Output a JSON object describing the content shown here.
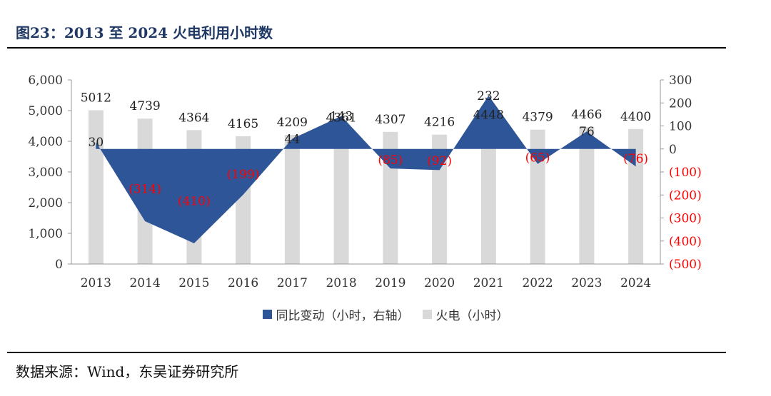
{
  "figure": {
    "title": "图23：2013 至 2024 火电利用小时数",
    "source": "数据来源：Wind，东吴证券研究所"
  },
  "chart_data": {
    "type": "bar",
    "categories": [
      "2013",
      "2014",
      "2015",
      "2016",
      "2017",
      "2018",
      "2019",
      "2020",
      "2021",
      "2022",
      "2023",
      "2024"
    ],
    "series": [
      {
        "name": "火电（小时）",
        "type": "bar",
        "axis": "left",
        "color": "#d9d9d9",
        "values": [
          5012,
          4739,
          4364,
          4165,
          4209,
          4361,
          4307,
          4216,
          4448,
          4379,
          4466,
          4400
        ],
        "labels": [
          "5012",
          "4739",
          "4364",
          "4165",
          "4209",
          "4361",
          "4307",
          "4216",
          "4448",
          "4379",
          "4466",
          "4400"
        ]
      },
      {
        "name": "同比变动（小时，右轴）",
        "type": "area",
        "axis": "right",
        "color": "#2e5597",
        "values": [
          30,
          -314,
          -410,
          -199,
          44,
          143,
          -85,
          -92,
          232,
          -65,
          76,
          -76
        ],
        "labels": [
          "30",
          "(314)",
          "(410)",
          "(199)",
          "44",
          "143",
          "(85)",
          "(92)",
          "232",
          "(65)",
          "76",
          "(76)"
        ]
      }
    ],
    "y_left": {
      "min": 0,
      "max": 6000,
      "step": 1000,
      "ticks": [
        "0",
        "1,000",
        "2,000",
        "3,000",
        "4,000",
        "5,000",
        "6,000"
      ]
    },
    "y_right": {
      "min": -500,
      "max": 300,
      "step": 100,
      "ticks": [
        "(500)",
        "(400)",
        "(300)",
        "(200)",
        "(100)",
        "0",
        "100",
        "200",
        "300"
      ],
      "negative_tick_color": "#ff0000"
    },
    "negative_label_color": "#ff0000",
    "legend_position": "bottom",
    "grid": false
  }
}
